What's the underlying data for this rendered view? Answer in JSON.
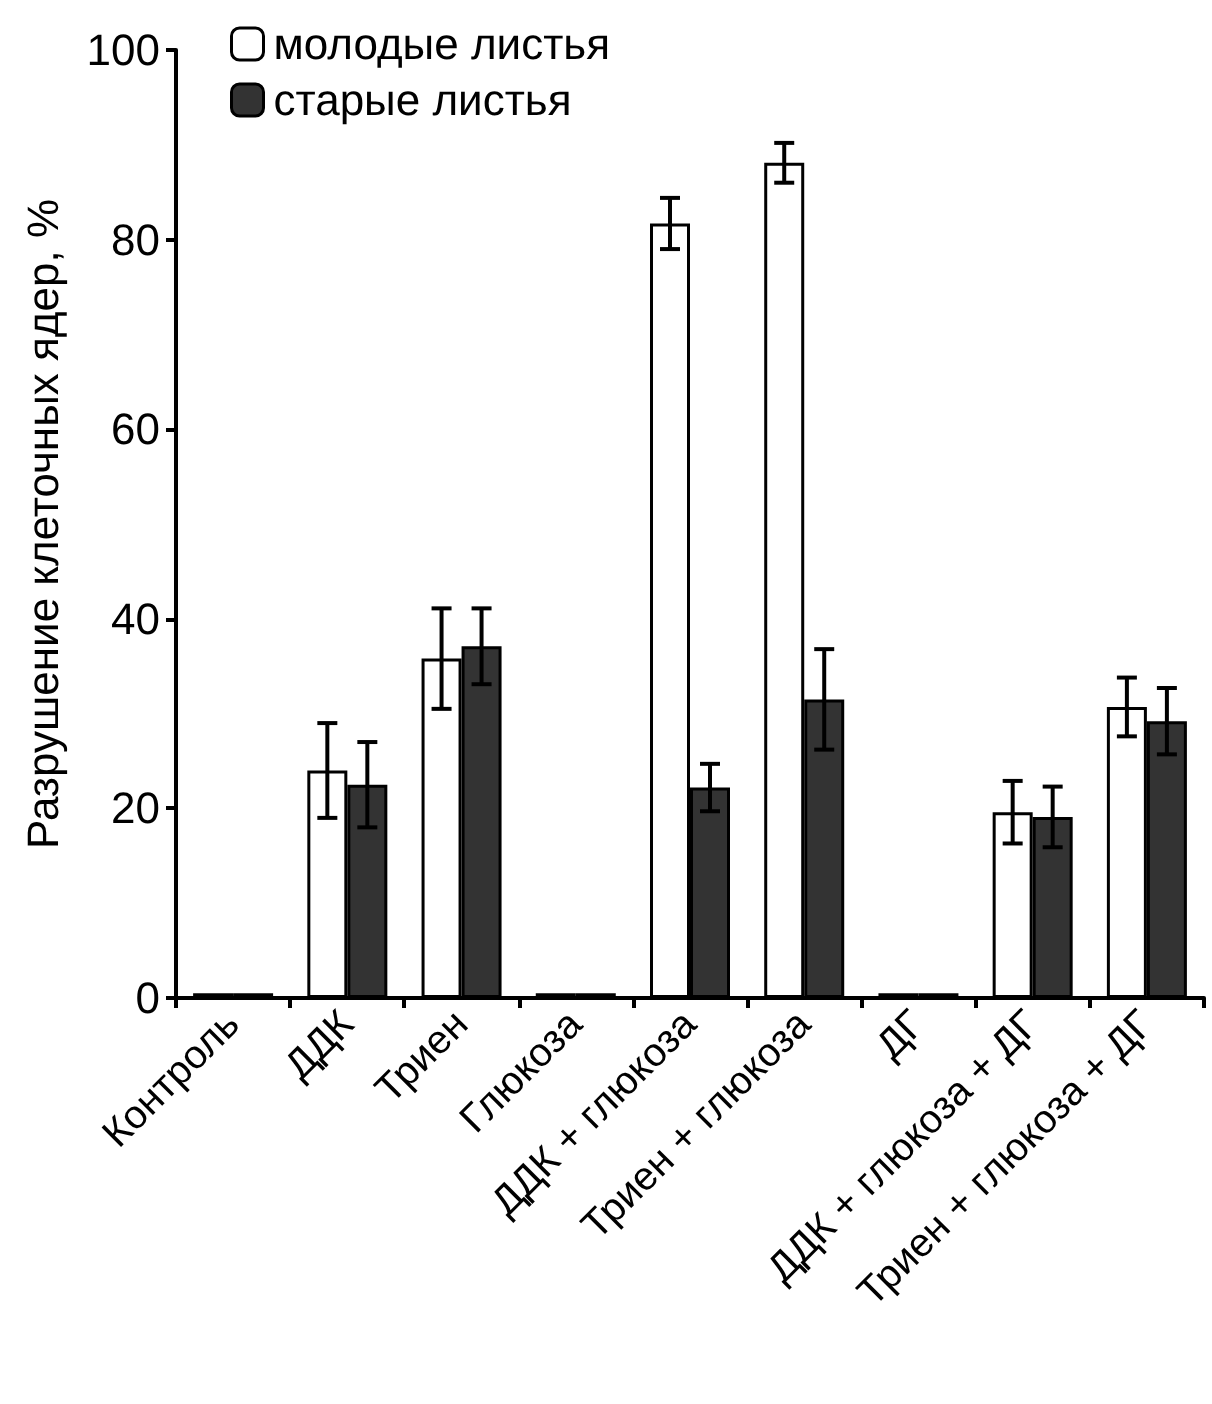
{
  "chart_data": {
    "type": "bar",
    "ylabel": "Разрушение клеточных ядер, %",
    "categories": [
      "Контроль",
      "ДДК",
      "Триен",
      "Глюкоза",
      "ДДК + глюкоза",
      "Триен + глюкоза",
      "ДГ",
      "ДДК + глюкоза + ДГ",
      "Триен + глюкоза + ДГ"
    ],
    "series": [
      {
        "name": "молодые листья",
        "color": "#ffffff",
        "values": [
          0.5,
          24,
          35.8,
          0.5,
          81.7,
          88.1,
          0.5,
          19.6,
          30.7
        ],
        "errors": [
          null,
          5,
          5.3,
          null,
          2.7,
          2.1,
          null,
          3.3,
          3.1
        ]
      },
      {
        "name": "старые листья",
        "color": "#333333",
        "values": [
          0.5,
          22.5,
          37.1,
          0.5,
          22.2,
          31.5,
          0.5,
          19.1,
          29.2
        ],
        "errors": [
          null,
          4.5,
          4,
          null,
          2.5,
          5.3,
          null,
          3.2,
          3.5
        ]
      }
    ],
    "ylim": [
      0,
      100
    ],
    "yticks": [
      0,
      20,
      40,
      60,
      80,
      100
    ],
    "grid": false,
    "legend": "top left"
  }
}
